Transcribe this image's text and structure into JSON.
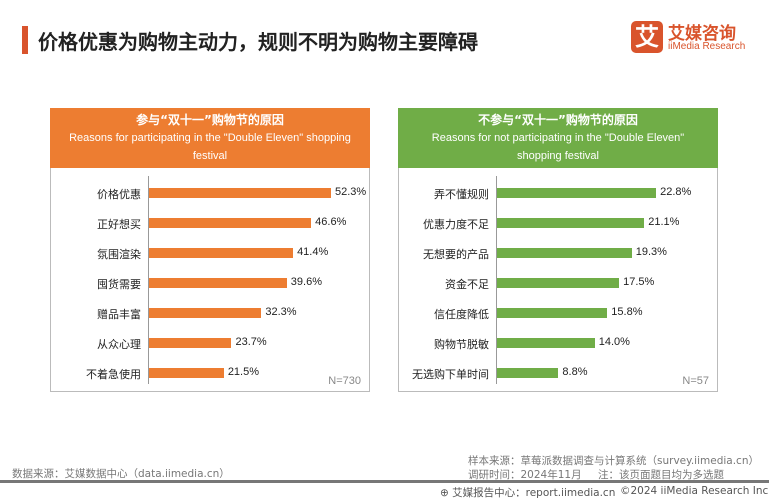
{
  "title": "价格优惠为购物主动力，规则不明为购物主要障碍",
  "logo": {
    "mark": "艾",
    "cn": "艾媒咨询",
    "en": "iiMedia Research"
  },
  "chart_data": [
    {
      "type": "bar",
      "orientation": "horizontal",
      "title": "参与“双十一”购物节的原因",
      "subtitle": "Reasons for participating in the \"Double Eleven\" shopping festival",
      "color": "#ED7D31",
      "unit": "%",
      "note": "N=730",
      "categories": [
        "价格优惠",
        "正好想买",
        "氛围渲染",
        "囤货需要",
        "赠品丰富",
        "从众心理",
        "不着急使用"
      ],
      "values": [
        52.3,
        46.6,
        41.4,
        39.6,
        32.3,
        23.7,
        21.5
      ],
      "labels": [
        "52.3%",
        "46.6%",
        "41.4%",
        "39.6%",
        "32.3%",
        "23.7%",
        "21.5%"
      ]
    },
    {
      "type": "bar",
      "orientation": "horizontal",
      "title": "不参与“双十一”购物节的原因",
      "subtitle": "Reasons for not participating in the \"Double Eleven\" shopping festival",
      "color": "#70AD47",
      "unit": "%",
      "note": "N=57",
      "categories": [
        "弄不懂规则",
        "优惠力度不足",
        "无想要的产品",
        "资金不足",
        "信任度降低",
        "购物节脱敏",
        "无选购下单时间"
      ],
      "values": [
        22.8,
        21.1,
        19.3,
        17.5,
        15.8,
        14.0,
        8.8
      ],
      "labels": [
        "22.8%",
        "21.1%",
        "19.3%",
        "17.5%",
        "15.8%",
        "14.0%",
        "8.8%"
      ]
    }
  ],
  "footer": {
    "data_source": "数据来源：艾媒数据中心（data.iimedia.cn）",
    "sample_source": "样本来源：草莓派数据调查与计算系统（survey.iimedia.cn）",
    "survey_time": "调研时间：2024年11月",
    "note": "注：该页面题目均为多选题",
    "report": "艾媒报告中心：report.iimedia.cn",
    "copyright": "©2024  iiMedia Research  Inc"
  }
}
